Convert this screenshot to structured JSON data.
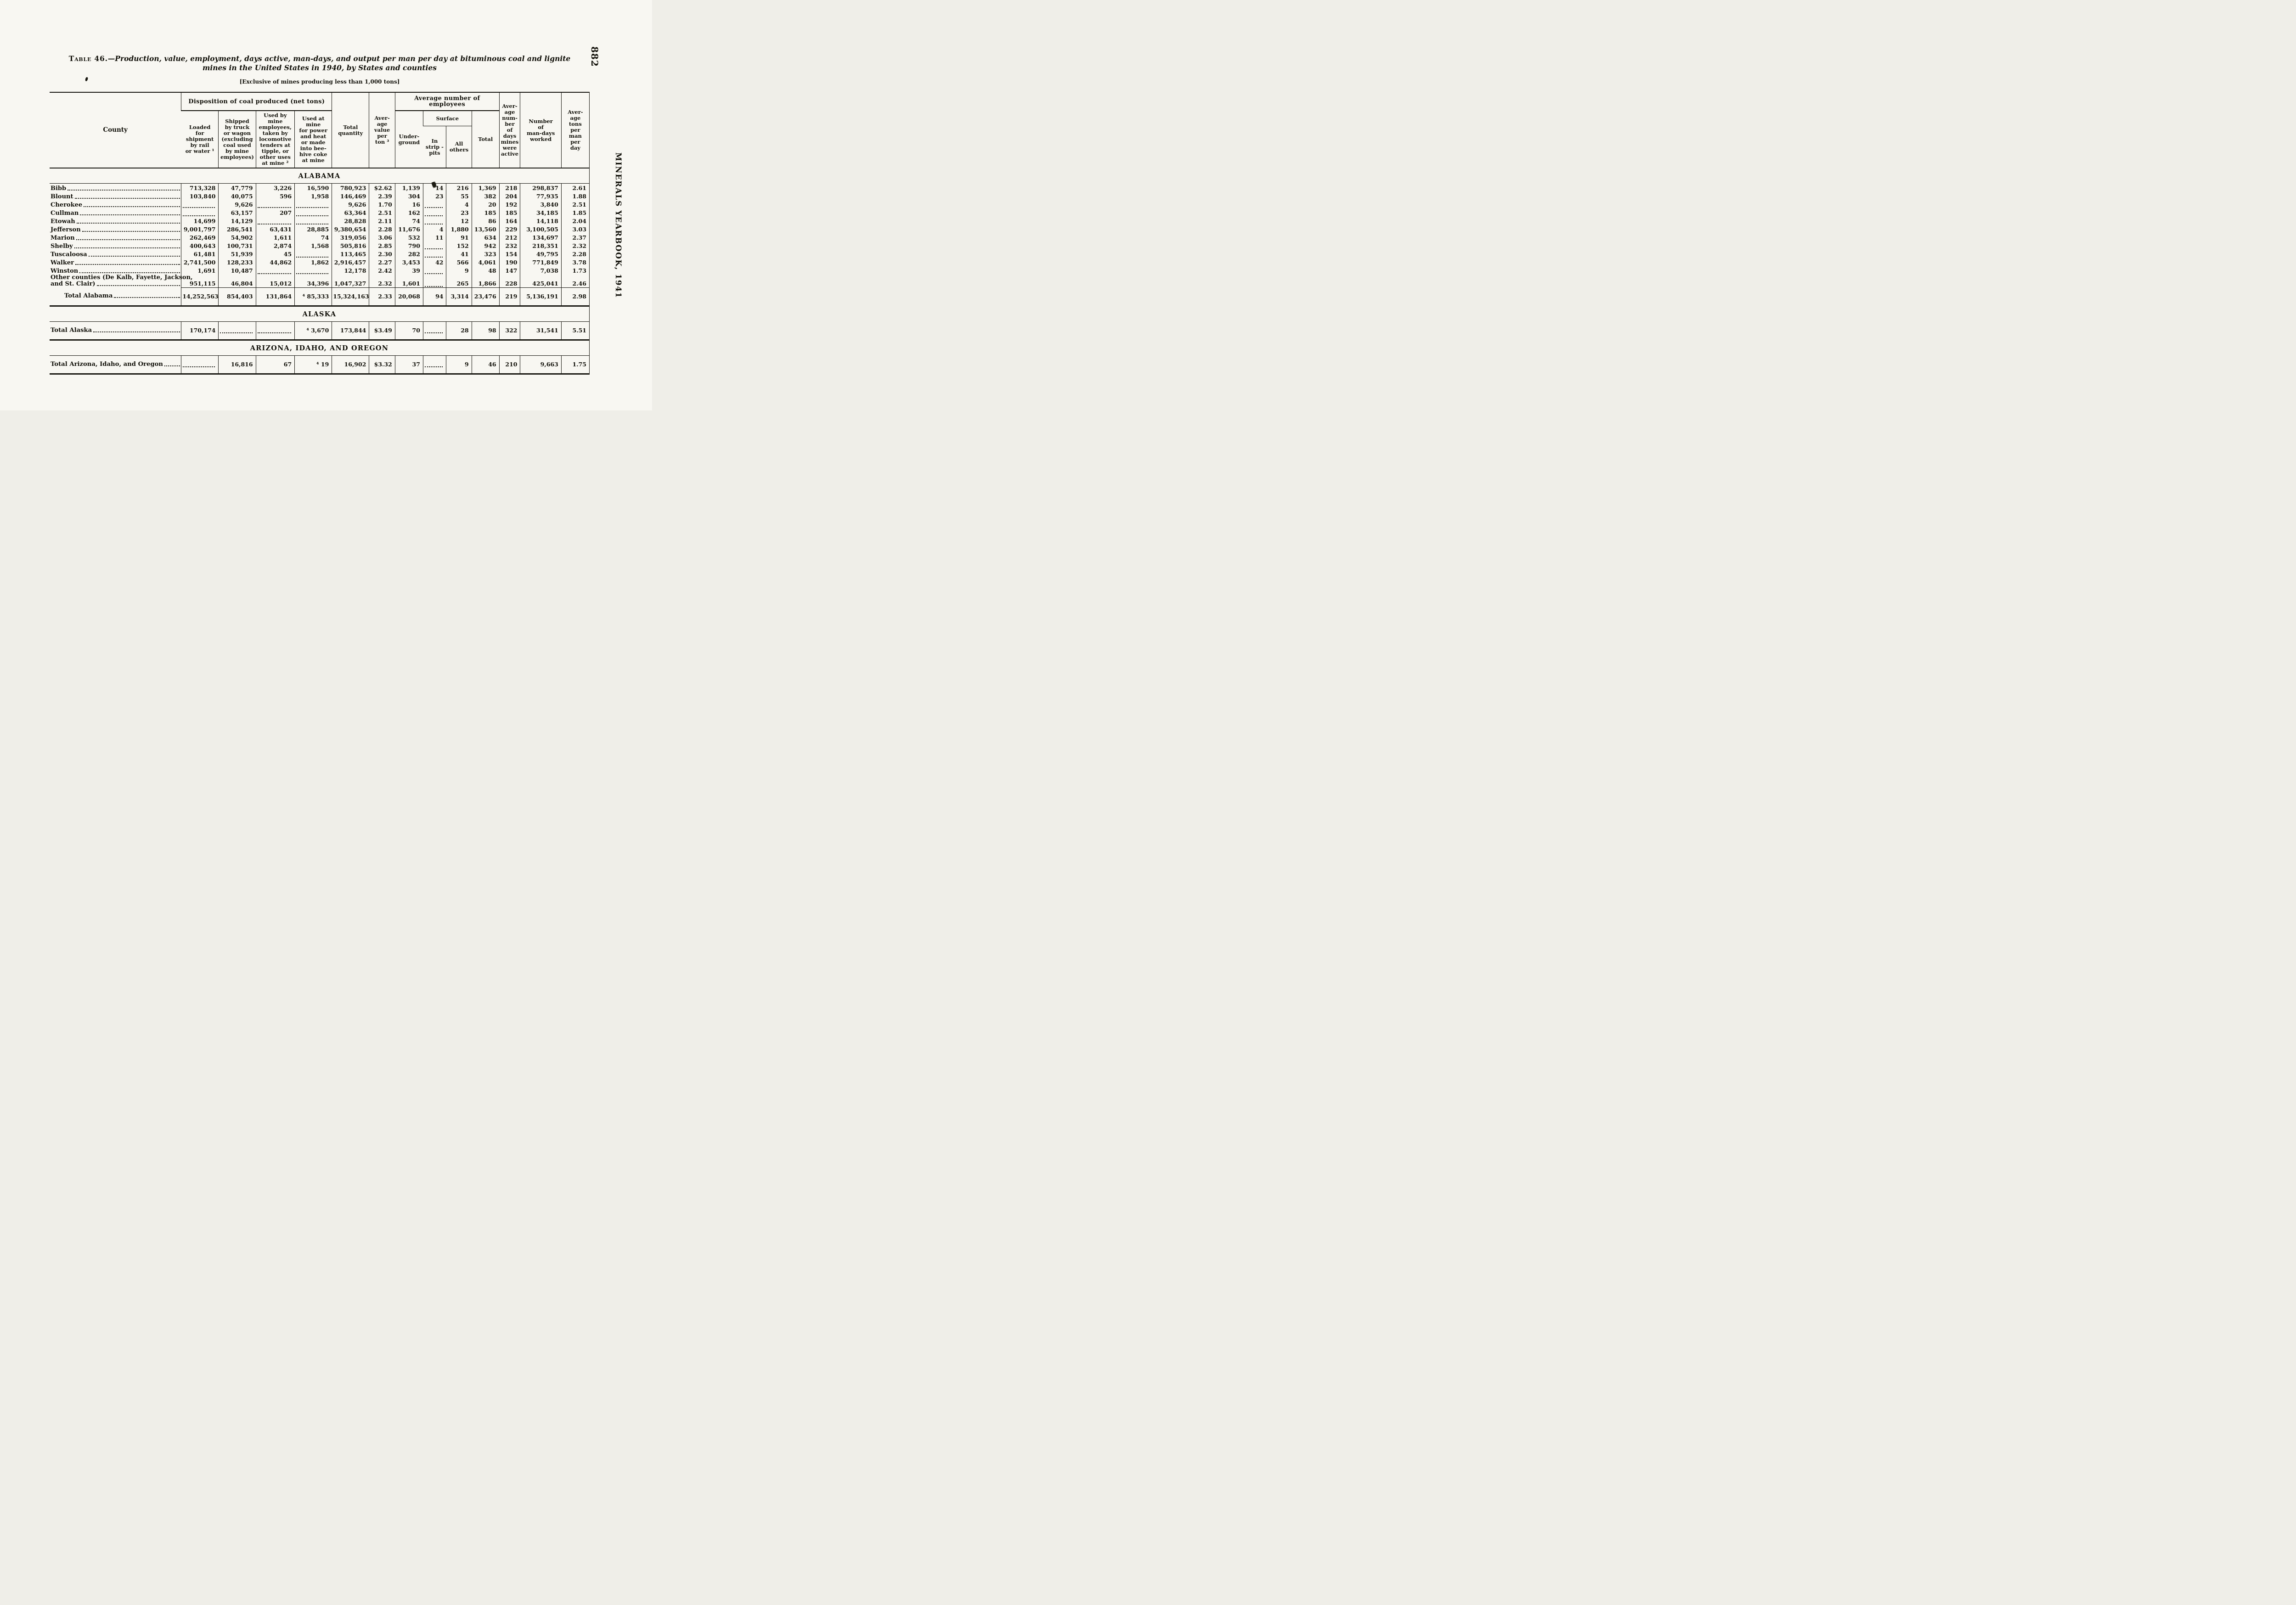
{
  "page": {
    "number": "882",
    "side_title": "MINERALS YEARBOOK, 1941"
  },
  "title": {
    "label": "Table 46.",
    "text": "—Production, value, employment, days active, man-days, and output per man per day at bituminous coal and lignite mines in the United States in 1940, by States and counties",
    "note": "[Exclusive of mines producing less than 1,000 tons]"
  },
  "table": {
    "groups": {
      "disposition": "Disposition of coal produced (net tons)",
      "employees": "Average number of employees",
      "surface": "Surface"
    },
    "headers": {
      "county": "County",
      "loaded": "Loaded\nfor\nshipment\nby rail\nor water ¹",
      "shipped": "Shipped\nby truck\nor wagon\n(excluding\ncoal used\nby mine\nemployees)",
      "used_by": "Used by\nmine\nemployees,\ntaken by\nlocomotive\ntenders at\ntipple, or\nother uses\nat mine ²",
      "used_at": "Used at\nmine\nfor power\nand heat\nor made\ninto bee-\nhive coke\nat mine",
      "total_qty": "Total\nquantity",
      "avg_value": "Aver-\nage\nvalue\nper\nton ³",
      "underground": "Under-\nground",
      "strip": "In\nstrip -\npits",
      "others": "All\nothers",
      "total_emp": "Total",
      "days": "Aver-\nage\nnum-\nber\nof\ndays\nmines\nwere\nactive",
      "man_days": "Number\nof\nman-days\nworked",
      "tons": "Aver-\nage\ntons\nper\nman\nper\nday"
    },
    "sections": [
      {
        "name": "ALABAMA",
        "rows": [
          {
            "county": "Bibb",
            "values": [
              "713,328",
              "47,779",
              "3,226",
              "16,590",
              "780,923",
              "$2.62",
              "1,139",
              "14",
              "216",
              "1,369",
              "218",
              "298,837",
              "2.61"
            ]
          },
          {
            "county": "Blount",
            "values": [
              "103,840",
              "40,075",
              "596",
              "1,958",
              "146,469",
              "2.39",
              "304",
              "23",
              "55",
              "382",
              "204",
              "77,935",
              "1.88"
            ]
          },
          {
            "county": "Cherokee",
            "values": [
              "",
              "9,626",
              "",
              "",
              "9,626",
              "1.70",
              "16",
              "",
              "4",
              "20",
              "192",
              "3,840",
              "2.51"
            ]
          },
          {
            "county": "Cullman",
            "values": [
              "",
              "63,157",
              "207",
              "",
              "63,364",
              "2.51",
              "162",
              "",
              "23",
              "185",
              "185",
              "34,185",
              "1.85"
            ]
          },
          {
            "county": "Etowah",
            "values": [
              "14,699",
              "14,129",
              "",
              "",
              "28,828",
              "2.11",
              "74",
              "",
              "12",
              "86",
              "164",
              "14,118",
              "2.04"
            ]
          },
          {
            "county": "Jefferson",
            "values": [
              "9,001,797",
              "286,541",
              "63,431",
              "28,885",
              "9,380,654",
              "2.28",
              "11,676",
              "4",
              "1,880",
              "13,560",
              "229",
              "3,100,505",
              "3.03"
            ]
          },
          {
            "county": "Marion",
            "values": [
              "262,469",
              "54,902",
              "1,611",
              "74",
              "319,056",
              "3.06",
              "532",
              "11",
              "91",
              "634",
              "212",
              "134,697",
              "2.37"
            ]
          },
          {
            "county": "Shelby",
            "values": [
              "400,643",
              "100,731",
              "2,874",
              "1,568",
              "505,816",
              "2.85",
              "790",
              "",
              "152",
              "942",
              "232",
              "218,351",
              "2.32"
            ]
          },
          {
            "county": "Tuscaloosa",
            "values": [
              "61,481",
              "51,939",
              "45",
              "",
              "113,465",
              "2.30",
              "282",
              "",
              "41",
              "323",
              "154",
              "49,795",
              "2.28"
            ]
          },
          {
            "county": "Walker",
            "values": [
              "2,741,500",
              "128,233",
              "44,862",
              "1,862",
              "2,916,457",
              "2.27",
              "3,453",
              "42",
              "566",
              "4,061",
              "190",
              "771,849",
              "3.78"
            ]
          },
          {
            "county": "Winston",
            "values": [
              "1,691",
              "10,487",
              "",
              "",
              "12,178",
              "2.42",
              "39",
              "",
              "9",
              "48",
              "147",
              "7,038",
              "1.73"
            ]
          },
          {
            "county": "Other counties (De Kalb, Fayette, Jackson,\nand St. Clair)",
            "values": [
              "951,115",
              "46,804",
              "15,012",
              "34,396",
              "1,047,327",
              "2.32",
              "1,601",
              "",
              "265",
              "1,866",
              "228",
              "425,041",
              "2.46"
            ]
          }
        ],
        "total": {
          "county": "Total Alabama",
          "indent": true,
          "values": [
            "14,252,563",
            "854,403",
            "131,864",
            "⁴ 85,333",
            "15,324,163",
            "2.33",
            "20,068",
            "94",
            "3,314",
            "23,476",
            "219",
            "5,136,191",
            "2.98"
          ]
        }
      },
      {
        "name": "ALASKA",
        "rows": [],
        "total": {
          "county": "Total Alaska",
          "indent": false,
          "values": [
            "170,174",
            "",
            "",
            "⁴ 3,670",
            "173,844",
            "$3.49",
            "70",
            "",
            "28",
            "98",
            "322",
            "31,541",
            "5.51"
          ]
        }
      },
      {
        "name": "ARIZONA, IDAHO, AND OREGON",
        "rows": [],
        "total": {
          "county": "Total Arizona, Idaho, and Oregon",
          "indent": false,
          "values": [
            "",
            "16,816",
            "67",
            "⁴ 19",
            "16,902",
            "$3.32",
            "37",
            "",
            "9",
            "46",
            "210",
            "9,663",
            "1.75"
          ]
        }
      }
    ]
  }
}
